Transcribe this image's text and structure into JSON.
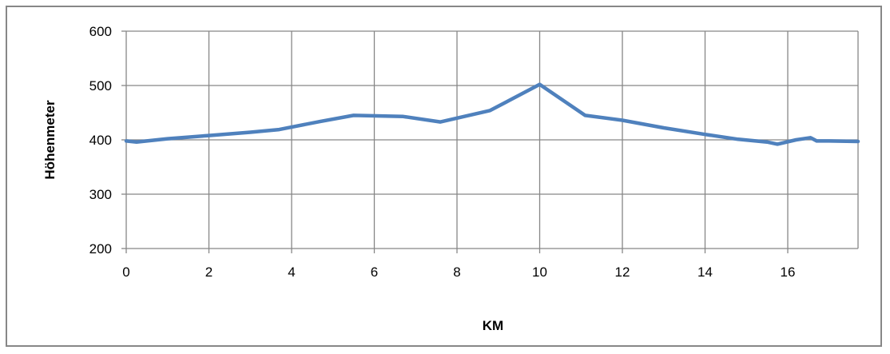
{
  "chart_data": {
    "type": "line",
    "title": "",
    "xlabel": "KM",
    "ylabel": "Höhenmeter",
    "xlim": [
      0,
      17.7
    ],
    "ylim": [
      200,
      600
    ],
    "x_ticks": [
      0,
      2,
      4,
      6,
      8,
      10,
      12,
      14,
      16
    ],
    "y_ticks": [
      200,
      300,
      400,
      500,
      600
    ],
    "grid": true,
    "legend": "none",
    "series": [
      {
        "color": "#4f81bd",
        "points": [
          [
            0,
            398
          ],
          [
            0.25,
            396
          ],
          [
            1.0,
            402
          ],
          [
            2.0,
            408
          ],
          [
            3.0,
            414
          ],
          [
            3.7,
            419
          ],
          [
            4.7,
            434
          ],
          [
            5.5,
            445
          ],
          [
            6.7,
            443
          ],
          [
            7.6,
            433
          ],
          [
            8.8,
            454
          ],
          [
            10.0,
            502
          ],
          [
            11.1,
            445
          ],
          [
            12.0,
            436
          ],
          [
            13.0,
            422
          ],
          [
            14.0,
            410
          ],
          [
            14.8,
            401
          ],
          [
            15.5,
            396
          ],
          [
            15.75,
            392
          ],
          [
            16.2,
            400
          ],
          [
            16.55,
            404
          ],
          [
            16.7,
            398
          ],
          [
            17.0,
            398
          ],
          [
            17.7,
            397
          ]
        ]
      }
    ]
  }
}
